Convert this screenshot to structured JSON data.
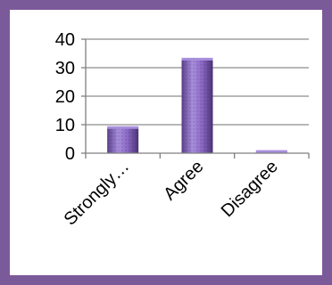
{
  "chart_data": {
    "type": "bar",
    "categories": [
      "Strongly…",
      "Agree",
      "Disagree"
    ],
    "values": [
      9,
      33,
      0.6
    ],
    "title": "",
    "xlabel": "",
    "ylabel": "",
    "ylim": [
      0,
      40
    ],
    "yticks": [
      "0",
      "10",
      "20",
      "30",
      "40"
    ],
    "grid": true,
    "legend": "none",
    "colors": {
      "frame": "#7b5a99",
      "bar_fill": "#8a68c4",
      "bar_light": "#a88fdc",
      "bar_dark": "#5a3f8a",
      "grid": "#8c8c8c",
      "axis": "#7f7f7f"
    }
  }
}
